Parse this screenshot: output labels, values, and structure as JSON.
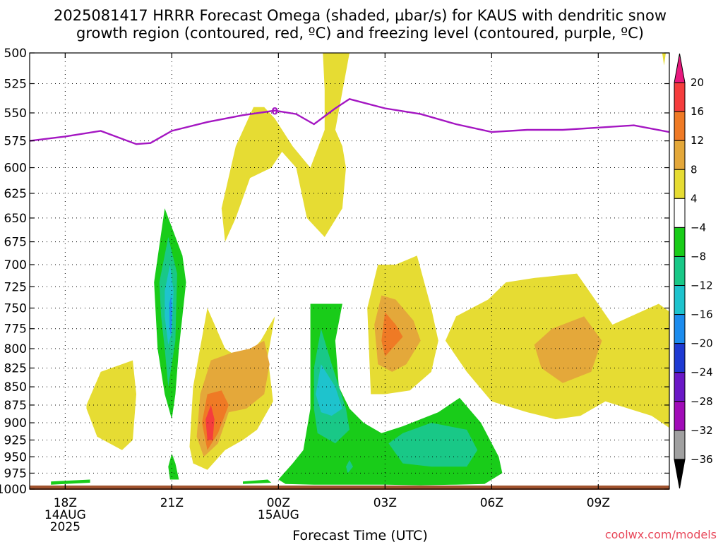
{
  "chart_data": {
    "type": "heatmap",
    "title": "2025081417 HRRR Forecast Omega (shaded, µbar/s) for KAUS with dendritic snow growth region (contoured, red, ºC) and freezing level (contoured, purple, ºC)",
    "title_lines": [
      "2025081417 HRRR Forecast Omega (shaded, µbar/s) for KAUS with dendritic snow",
      "growth region (contoured, red, ºC) and freezing level (contoured, purple, ºC)"
    ],
    "xlabel": "Forecast Time (UTC)",
    "ylabel": "",
    "x_ticks": [
      {
        "hour": 1,
        "lines": [
          "18Z",
          "14AUG",
          "2025"
        ]
      },
      {
        "hour": 4,
        "lines": [
          "21Z"
        ]
      },
      {
        "hour": 7,
        "lines": [
          "00Z",
          "15AUG"
        ]
      },
      {
        "hour": 10,
        "lines": [
          "03Z"
        ]
      },
      {
        "hour": 13,
        "lines": [
          "06Z"
        ]
      },
      {
        "hour": 16,
        "lines": [
          "09Z"
        ]
      }
    ],
    "xlim": [
      0,
      18
    ],
    "ylim_hPa": [
      1000,
      500
    ],
    "y_scale": "log-pressure",
    "y_ticks": [
      500,
      525,
      550,
      575,
      600,
      625,
      650,
      675,
      700,
      725,
      750,
      775,
      800,
      825,
      850,
      875,
      900,
      925,
      950,
      975,
      1000
    ],
    "grid": true,
    "colorbar": {
      "labels": [
        "20",
        "16",
        "12",
        "8",
        "4",
        "−4",
        "−8",
        "−12",
        "−16",
        "−20",
        "−24",
        "−28",
        "−32",
        "−36"
      ],
      "bins": [
        {
          "range": "> 20",
          "color": "#e8197e"
        },
        {
          "range": "16 to 20",
          "color": "#f53d3d"
        },
        {
          "range": "12 to 16",
          "color": "#ef7a25"
        },
        {
          "range": "8 to 12",
          "color": "#e4a83a"
        },
        {
          "range": "4 to 8",
          "color": "#e6dc33"
        },
        {
          "range": "-4 to 4",
          "color": "#ffffff"
        },
        {
          "range": "-8 to -4",
          "color": "#19cc19"
        },
        {
          "range": "-12 to -8",
          "color": "#19c887"
        },
        {
          "range": "-16 to -12",
          "color": "#1ec3cd"
        },
        {
          "range": "-20 to -16",
          "color": "#1c8cee"
        },
        {
          "range": "-24 to -20",
          "color": "#1e3ad2"
        },
        {
          "range": "-28 to -24",
          "color": "#6a18c6"
        },
        {
          "range": "-32 to -28",
          "color": "#a10cb8"
        },
        {
          "range": "-36 to -32",
          "color": "#a0a0a0"
        },
        {
          "range": "< -36",
          "color": "#000000"
        }
      ]
    },
    "freezing_level": {
      "color": "#a416c2",
      "label": "0",
      "points": [
        [
          0,
          575
        ],
        [
          1,
          571
        ],
        [
          2,
          566
        ],
        [
          3,
          578
        ],
        [
          3.4,
          577
        ],
        [
          4,
          566
        ],
        [
          5,
          558
        ],
        [
          6,
          552
        ],
        [
          6.9,
          548
        ],
        [
          7.5,
          551
        ],
        [
          8,
          560
        ],
        [
          8.6,
          546
        ],
        [
          9,
          538
        ],
        [
          10,
          546
        ],
        [
          11,
          551
        ],
        [
          12,
          560
        ],
        [
          13,
          567
        ],
        [
          14,
          565
        ],
        [
          15,
          565
        ],
        [
          16,
          563
        ],
        [
          17,
          561
        ],
        [
          18,
          567
        ]
      ]
    },
    "ground_color": "#a0522d",
    "omega_regions": [
      {
        "level": "4 to 8",
        "color": "#e6dc33",
        "points": [
          [
            8.25,
            500
          ],
          [
            9,
            500
          ],
          [
            8.6,
            565
          ],
          [
            8.8,
            580
          ],
          [
            8.9,
            600
          ],
          [
            8.8,
            640
          ],
          [
            8.3,
            670
          ],
          [
            7.8,
            650
          ],
          [
            7.5,
            600
          ],
          [
            7.1,
            585
          ],
          [
            6.8,
            600
          ],
          [
            6.2,
            610
          ],
          [
            5.8,
            650
          ],
          [
            5.5,
            675
          ],
          [
            5.4,
            640
          ],
          [
            5.8,
            580
          ],
          [
            6.3,
            545
          ],
          [
            6.6,
            545
          ],
          [
            6.9,
            555
          ],
          [
            7.4,
            580
          ],
          [
            7.9,
            600
          ],
          [
            8.3,
            565
          ],
          [
            8.3,
            530
          ]
        ]
      },
      {
        "level": "4 to 8",
        "color": "#e6dc33",
        "points": [
          [
            17.8,
            500
          ],
          [
            17.9,
            500
          ],
          [
            17.85,
            510
          ]
        ]
      },
      {
        "level": "4 to 8",
        "color": "#e6dc33",
        "points": [
          [
            1.6,
            875
          ],
          [
            2.0,
            830
          ],
          [
            2.9,
            815
          ],
          [
            3.0,
            860
          ],
          [
            2.9,
            925
          ],
          [
            2.6,
            940
          ],
          [
            1.9,
            920
          ],
          [
            1.6,
            880
          ]
        ]
      },
      {
        "level": "4 to 8",
        "color": "#e6dc33",
        "points": [
          [
            4.5,
            935
          ],
          [
            4.6,
            850
          ],
          [
            5.0,
            750
          ],
          [
            5.5,
            800
          ],
          [
            6.0,
            815
          ],
          [
            6.5,
            790
          ],
          [
            6.9,
            760
          ],
          [
            6.7,
            810
          ],
          [
            6.85,
            870
          ],
          [
            6.4,
            910
          ],
          [
            6.0,
            925
          ],
          [
            5.5,
            940
          ],
          [
            5.0,
            970
          ],
          [
            4.6,
            960
          ]
        ]
      },
      {
        "level": "4 to 8",
        "color": "#e6dc33",
        "points": [
          [
            9.6,
            860
          ],
          [
            9.5,
            750
          ],
          [
            9.8,
            700
          ],
          [
            10.3,
            700
          ],
          [
            10.9,
            690
          ],
          [
            11.3,
            750
          ],
          [
            11.5,
            790
          ],
          [
            11.3,
            830
          ],
          [
            10.7,
            855
          ],
          [
            10.0,
            860
          ]
        ]
      },
      {
        "level": "4 to 8",
        "color": "#e6dc33",
        "points": [
          [
            11.7,
            790
          ],
          [
            12.0,
            760
          ],
          [
            12.9,
            740
          ],
          [
            13.4,
            720
          ],
          [
            14.2,
            715
          ],
          [
            15.4,
            710
          ],
          [
            16.4,
            770
          ],
          [
            17.7,
            745
          ],
          [
            18.5,
            770
          ],
          [
            18.5,
            925
          ],
          [
            17.5,
            890
          ],
          [
            16.2,
            870
          ],
          [
            15.5,
            890
          ],
          [
            14.8,
            895
          ],
          [
            14.0,
            885
          ],
          [
            13.0,
            870
          ],
          [
            12.3,
            830
          ]
        ]
      },
      {
        "level": "8 to 12",
        "color": "#e4a83a",
        "points": [
          [
            4.7,
            920
          ],
          [
            4.8,
            860
          ],
          [
            5.1,
            815
          ],
          [
            5.7,
            805
          ],
          [
            6.2,
            800
          ],
          [
            6.6,
            790
          ],
          [
            6.75,
            820
          ],
          [
            6.6,
            860
          ],
          [
            6.1,
            880
          ],
          [
            5.6,
            885
          ],
          [
            5.3,
            930
          ],
          [
            4.9,
            950
          ]
        ]
      },
      {
        "level": "8 to 12",
        "color": "#e4a83a",
        "points": [
          [
            9.8,
            820
          ],
          [
            9.7,
            770
          ],
          [
            9.9,
            735
          ],
          [
            10.3,
            740
          ],
          [
            10.8,
            765
          ],
          [
            11.0,
            790
          ],
          [
            10.6,
            820
          ],
          [
            10.2,
            830
          ]
        ]
      },
      {
        "level": "8 to 12",
        "color": "#e4a83a",
        "points": [
          [
            14.2,
            795
          ],
          [
            14.7,
            775
          ],
          [
            15.6,
            760
          ],
          [
            16.1,
            790
          ],
          [
            15.8,
            830
          ],
          [
            15.0,
            845
          ],
          [
            14.4,
            825
          ]
        ]
      },
      {
        "level": "12 to 16",
        "color": "#ef7a25",
        "points": [
          [
            4.85,
            900
          ],
          [
            5.0,
            860
          ],
          [
            5.4,
            855
          ],
          [
            5.6,
            875
          ],
          [
            5.3,
            915
          ],
          [
            5.0,
            940
          ]
        ]
      },
      {
        "level": "12 to 16",
        "color": "#ef7a25",
        "points": [
          [
            9.9,
            790
          ],
          [
            10.0,
            755
          ],
          [
            10.3,
            770
          ],
          [
            10.5,
            785
          ],
          [
            10.2,
            800
          ],
          [
            10.0,
            810
          ]
        ]
      },
      {
        "level": "16 to 20",
        "color": "#f53d3d",
        "points": [
          [
            4.95,
            895
          ],
          [
            5.1,
            875
          ],
          [
            5.2,
            895
          ],
          [
            5.15,
            925
          ],
          [
            5.0,
            925
          ]
        ]
      },
      {
        "level": "-8 to -4",
        "color": "#19cc19",
        "points": [
          [
            3.5,
            720
          ],
          [
            3.8,
            640
          ],
          [
            4.3,
            690
          ],
          [
            4.4,
            720
          ],
          [
            4.2,
            800
          ],
          [
            4.1,
            860
          ],
          [
            4.0,
            895
          ],
          [
            3.8,
            860
          ],
          [
            3.6,
            800
          ]
        ]
      },
      {
        "level": "-8 to -4",
        "color": "#19cc19",
        "points": [
          [
            3.9,
            965
          ],
          [
            4.0,
            945
          ],
          [
            4.1,
            960
          ],
          [
            4.2,
            985
          ],
          [
            3.95,
            985
          ]
        ]
      },
      {
        "level": "-8 to -4",
        "color": "#19cc19",
        "points": [
          [
            0.6,
            988
          ],
          [
            1.7,
            985
          ],
          [
            1.7,
            990
          ],
          [
            0.6,
            993
          ]
        ]
      },
      {
        "level": "-8 to -4",
        "color": "#19cc19",
        "points": [
          [
            6.0,
            988
          ],
          [
            6.7,
            985
          ],
          [
            6.8,
            990
          ],
          [
            6.0,
            992
          ]
        ]
      },
      {
        "level": "-8 to -4",
        "color": "#19cc19",
        "points": [
          [
            7.0,
            985
          ],
          [
            7.4,
            960
          ],
          [
            7.7,
            940
          ],
          [
            7.9,
            880
          ],
          [
            7.9,
            745
          ],
          [
            8.8,
            745
          ],
          [
            8.6,
            790
          ],
          [
            8.7,
            850
          ],
          [
            9.0,
            880
          ],
          [
            9.4,
            900
          ],
          [
            9.9,
            915
          ],
          [
            10.5,
            905
          ],
          [
            11.5,
            885
          ],
          [
            12.1,
            865
          ],
          [
            12.7,
            900
          ],
          [
            13.2,
            950
          ],
          [
            13.3,
            975
          ],
          [
            12.8,
            992
          ],
          [
            12.0,
            993
          ],
          [
            11.0,
            994
          ],
          [
            10.0,
            993
          ],
          [
            9.0,
            993
          ],
          [
            8.0,
            993
          ],
          [
            7.2,
            992
          ]
        ]
      },
      {
        "level": "-12 to -8",
        "color": "#19c887",
        "points": [
          [
            3.65,
            720
          ],
          [
            3.9,
            670
          ],
          [
            4.15,
            710
          ],
          [
            4.1,
            790
          ],
          [
            3.9,
            850
          ],
          [
            3.8,
            800
          ],
          [
            3.7,
            760
          ]
        ]
      },
      {
        "level": "-12 to -8",
        "color": "#19c887",
        "points": [
          [
            8.0,
            880
          ],
          [
            8.0,
            825
          ],
          [
            8.2,
            775
          ],
          [
            8.5,
            820
          ],
          [
            8.9,
            880
          ],
          [
            9.0,
            910
          ],
          [
            8.6,
            930
          ],
          [
            8.1,
            915
          ]
        ]
      },
      {
        "level": "-12 to -8",
        "color": "#19c887",
        "points": [
          [
            8.9,
            965
          ],
          [
            9.0,
            955
          ],
          [
            9.1,
            965
          ],
          [
            8.95,
            975
          ]
        ]
      },
      {
        "level": "-12 to -8",
        "color": "#19c887",
        "points": [
          [
            10.1,
            930
          ],
          [
            10.5,
            915
          ],
          [
            11.3,
            900
          ],
          [
            12.3,
            910
          ],
          [
            12.6,
            940
          ],
          [
            12.3,
            965
          ],
          [
            11.3,
            965
          ],
          [
            10.5,
            960
          ]
        ]
      },
      {
        "level": "-16 to -12",
        "color": "#1ec3cd",
        "points": [
          [
            3.8,
            730
          ],
          [
            3.95,
            700
          ],
          [
            4.05,
            730
          ],
          [
            4.0,
            780
          ],
          [
            3.9,
            795
          ],
          [
            3.8,
            760
          ]
        ]
      },
      {
        "level": "-16 to -12",
        "color": "#1ec3cd",
        "points": [
          [
            8.05,
            860
          ],
          [
            8.2,
            820
          ],
          [
            8.6,
            850
          ],
          [
            8.8,
            880
          ],
          [
            8.5,
            890
          ],
          [
            8.2,
            885
          ]
        ]
      },
      {
        "level": "-20 to -16",
        "color": "#1c8cee",
        "points": [
          [
            3.93,
            745
          ],
          [
            3.98,
            735
          ],
          [
            4.01,
            755
          ],
          [
            3.98,
            785
          ],
          [
            3.94,
            775
          ]
        ]
      }
    ]
  },
  "credit": {
    "text": "coolwx.com/models",
    "color": "#e8485a"
  }
}
